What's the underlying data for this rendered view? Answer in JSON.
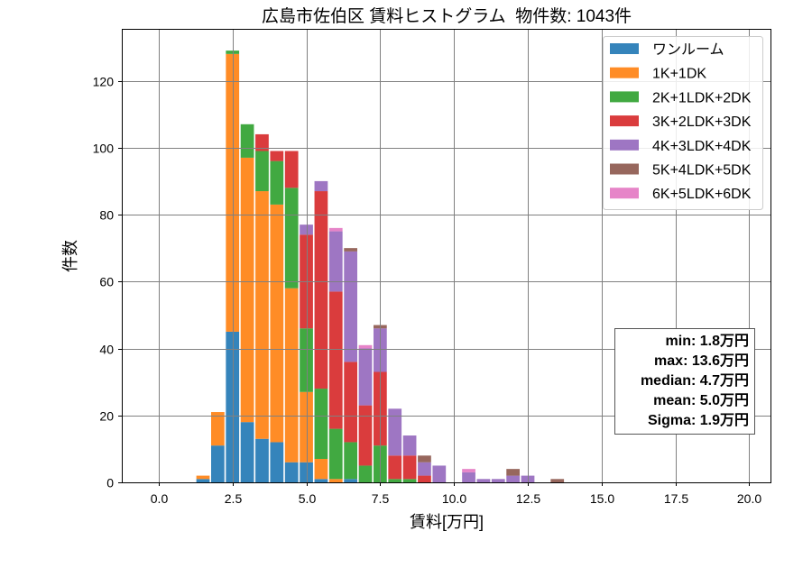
{
  "chart_data": {
    "type": "bar",
    "stacked": true,
    "title": "広島市佐伯区 賃料ヒストグラム  物件数: 1043件",
    "xlabel": "賃料[万円]",
    "ylabel": "件数",
    "xlim": [
      -1.25,
      20.75
    ],
    "ylim": [
      0,
      135.5
    ],
    "xticks": [
      0,
      2.5,
      5,
      7.5,
      10,
      12.5,
      15,
      17.5,
      20
    ],
    "xtick_labels": [
      "0.0",
      "2.5",
      "5.0",
      "7.5",
      "10.0",
      "12.5",
      "15.0",
      "17.5",
      "20.0"
    ],
    "yticks": [
      0,
      20,
      40,
      60,
      80,
      100,
      120
    ],
    "ytick_labels": [
      "0",
      "20",
      "40",
      "60",
      "80",
      "100",
      "120"
    ],
    "grid": true,
    "legend_position": "top-right",
    "x": [
      1.5,
      2.0,
      2.5,
      3.0,
      3.5,
      4.0,
      4.5,
      5.0,
      5.5,
      6.0,
      6.5,
      7.0,
      7.5,
      8.0,
      8.5,
      9.0,
      9.5,
      10.0,
      10.5,
      11.0,
      11.5,
      12.0,
      12.5,
      13.0,
      13.5
    ],
    "series": [
      {
        "name": "ワンルーム",
        "color": "#1f77b4",
        "values": [
          1,
          11,
          45,
          18,
          13,
          12,
          6,
          6,
          1,
          0,
          1,
          0,
          0,
          0,
          0,
          0,
          0,
          0,
          0,
          0,
          0,
          0,
          0,
          0,
          0
        ]
      },
      {
        "name": "1K+1DK",
        "color": "#ff7f0e",
        "values": [
          1,
          10,
          83,
          79,
          74,
          71,
          52,
          21,
          6,
          1,
          0,
          0,
          0,
          0,
          0,
          0,
          0,
          0,
          0,
          0,
          0,
          0,
          0,
          0,
          0
        ]
      },
      {
        "name": "2K+1LDK+2DK",
        "color": "#2ca02c",
        "values": [
          0,
          0,
          1,
          10,
          12,
          13,
          30,
          19,
          21,
          15,
          11,
          5,
          11,
          1,
          1,
          0,
          0,
          0,
          0,
          0,
          0,
          0,
          0,
          0,
          0
        ]
      },
      {
        "name": "3K+2LDK+3DK",
        "color": "#d62728",
        "values": [
          0,
          0,
          0,
          0,
          5,
          3,
          11,
          28,
          59,
          41,
          24,
          18,
          22,
          7,
          7,
          2,
          0,
          0,
          0,
          0,
          0,
          0,
          0,
          0,
          0
        ]
      },
      {
        "name": "4K+3LDK+4DK",
        "color": "#9467bd",
        "values": [
          0,
          0,
          0,
          0,
          0,
          0,
          0,
          3,
          3,
          18,
          33,
          17,
          13,
          14,
          6,
          4,
          5,
          0,
          3,
          1,
          1,
          2,
          2,
          0,
          0
        ]
      },
      {
        "name": "5K+4LDK+5DK",
        "color": "#8c564b",
        "values": [
          0,
          0,
          0,
          0,
          0,
          0,
          0,
          0,
          0,
          0,
          1,
          0,
          1,
          0,
          0,
          2,
          0,
          0,
          0,
          0,
          0,
          2,
          0,
          0,
          1
        ]
      },
      {
        "name": "6K+5LDK+6DK",
        "color": "#e377c2",
        "values": [
          0,
          0,
          0,
          0,
          0,
          0,
          0,
          0,
          0,
          1,
          0,
          1,
          0,
          0,
          0,
          0,
          0,
          0,
          1,
          0,
          0,
          0,
          0,
          0,
          0
        ]
      }
    ],
    "annotation": {
      "position": "lower-right",
      "lines": [
        "min: 1.8万円",
        "max: 13.6万円",
        "median: 4.7万円",
        "mean: 5.0万円",
        "Sigma: 1.9万円"
      ]
    }
  }
}
